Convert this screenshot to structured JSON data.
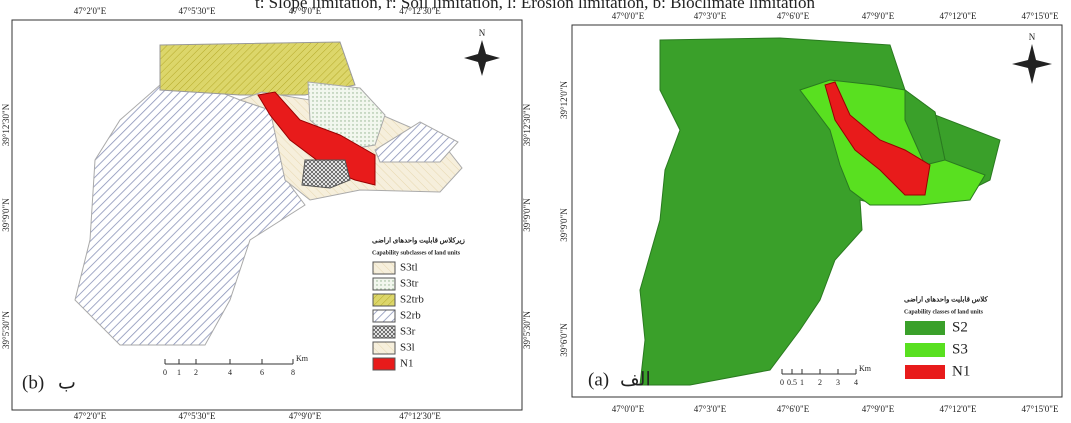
{
  "caption": "t: Slope limitation, r: Soil limitation, l: Erosion limitation, b: Bioclimate limitation",
  "map_b": {
    "top_labels": [
      "47°2'0\"E",
      "47°5'30\"E",
      "47°9'0\"E",
      "47°12'30\"E"
    ],
    "bottom_labels": [
      "47°2'0\"E",
      "47°5'30\"E",
      "47°9'0\"E",
      "47°12'30\"E"
    ],
    "left_labels": [
      "39°12'30\"N",
      "39°9'0\"N",
      "39°5'30\"N"
    ],
    "right_labels": [
      "39°12'30\"N",
      "39°9'0\"N",
      "39°5'30\"N"
    ],
    "legend_title_fa": "زیرکلاس قابلیت واحدهای اراضی",
    "legend_title_en": "Capability subclasses of land units",
    "legend": [
      "S3tl",
      "S3tr",
      "S2trb",
      "S2rb",
      "S3r",
      "S3l",
      "N1"
    ],
    "scale_labels": [
      "0",
      "1",
      "2",
      "4",
      "6",
      "8"
    ],
    "scale_unit": "Km",
    "north": "N",
    "panel_label": "(b)",
    "panel_label_fa": "ب"
  },
  "map_a": {
    "top_labels": [
      "47°0'0\"E",
      "47°3'0\"E",
      "47°6'0\"E",
      "47°9'0\"E",
      "47°12'0\"E",
      "47°15'0\"E"
    ],
    "bottom_labels": [
      "47°0'0\"E",
      "47°3'0\"E",
      "47°6'0\"E",
      "47°9'0\"E",
      "47°12'0\"E",
      "47°15'0\"E"
    ],
    "left_labels": [
      "39°12'0\"N",
      "39°9'0\"N",
      "39°6'0\"N"
    ],
    "legend_title_fa": "کلاس قابلیت واحدهای اراضی",
    "legend_title_en": "Capability classes of land units",
    "legend": [
      "S2",
      "S3",
      "N1"
    ],
    "scale_labels": [
      "0",
      "0.5",
      "1",
      "2",
      "3",
      "4"
    ],
    "scale_unit": "Km",
    "north": "N",
    "panel_label": "(a)",
    "panel_label_fa": "الف"
  }
}
